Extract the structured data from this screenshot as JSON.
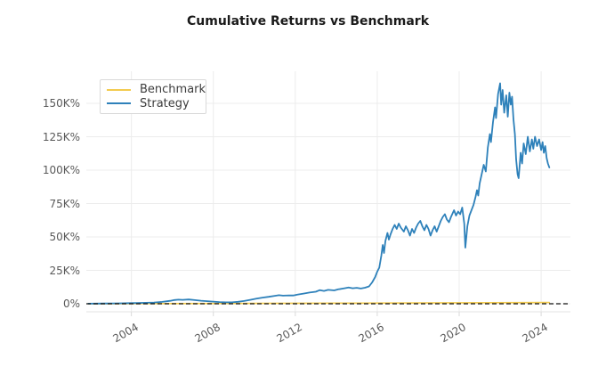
{
  "figure": {
    "background": "#ffffff"
  },
  "title": "Cumulative Returns vs Benchmark",
  "legend": {
    "items": [
      {
        "label": "Benchmark",
        "color": "#f3cb4f"
      },
      {
        "label": "Strategy",
        "color": "#2e81ba"
      }
    ]
  },
  "colors": {
    "grid": "#ececec",
    "axis_spine": "#e3e3e3",
    "tick_mark": "#d9d9d9",
    "tick_label": "#595959",
    "zero_line": "#111111",
    "benchmark": "#f3cb4f",
    "strategy": "#2e81ba"
  },
  "chart_data": {
    "type": "line",
    "title": "Cumulative Returns vs Benchmark",
    "xlabel": "",
    "ylabel": "",
    "grid": true,
    "legend_position": "upper-left",
    "xlim": [
      2001.8,
      2025.43
    ],
    "ylim": [
      -6000,
      174000
    ],
    "x_ticks": [
      2004,
      2008,
      2012,
      2016,
      2020,
      2024
    ],
    "x_tick_labels": [
      "2004",
      "2008",
      "2012",
      "2016",
      "2020",
      "2024"
    ],
    "y_ticks": [
      0,
      25000,
      50000,
      75000,
      100000,
      125000,
      150000
    ],
    "y_tick_labels": [
      "0%",
      "25K%",
      "50K%",
      "75K%",
      "100K%",
      "125K%",
      "150K%"
    ],
    "zero_line": {
      "y": 0,
      "style": "dashed",
      "color": "#111111"
    },
    "series": [
      {
        "name": "Benchmark",
        "color": "#f3cb4f",
        "style": "solid",
        "points": [
          [
            2001.9,
            0
          ],
          [
            2005.0,
            120
          ],
          [
            2010.0,
            300
          ],
          [
            2015.0,
            500
          ],
          [
            2020.0,
            750
          ],
          [
            2024.4,
            950
          ]
        ]
      },
      {
        "name": "Strategy",
        "color": "#2e81ba",
        "style": "solid",
        "points": [
          [
            2001.9,
            100
          ],
          [
            2002.3,
            150
          ],
          [
            2002.7,
            200
          ],
          [
            2003.1,
            300
          ],
          [
            2003.5,
            350
          ],
          [
            2003.9,
            450
          ],
          [
            2004.3,
            550
          ],
          [
            2004.7,
            700
          ],
          [
            2005.1,
            950
          ],
          [
            2005.5,
            1400
          ],
          [
            2005.9,
            2200
          ],
          [
            2006.1,
            2800
          ],
          [
            2006.3,
            3100
          ],
          [
            2006.5,
            2900
          ],
          [
            2006.8,
            3200
          ],
          [
            2007.1,
            2700
          ],
          [
            2007.4,
            2300
          ],
          [
            2007.7,
            1900
          ],
          [
            2008.0,
            1600
          ],
          [
            2008.3,
            1300
          ],
          [
            2008.6,
            1050
          ],
          [
            2008.9,
            1100
          ],
          [
            2009.2,
            1500
          ],
          [
            2009.5,
            2100
          ],
          [
            2009.8,
            2900
          ],
          [
            2010.1,
            3800
          ],
          [
            2010.4,
            4600
          ],
          [
            2010.7,
            5200
          ],
          [
            2011.0,
            5900
          ],
          [
            2011.2,
            6400
          ],
          [
            2011.4,
            6100
          ],
          [
            2011.7,
            6300
          ],
          [
            2011.9,
            6200
          ],
          [
            2012.1,
            6800
          ],
          [
            2012.4,
            7600
          ],
          [
            2012.7,
            8400
          ],
          [
            2013.0,
            9000
          ],
          [
            2013.2,
            10200
          ],
          [
            2013.4,
            9600
          ],
          [
            2013.6,
            10400
          ],
          [
            2013.9,
            10000
          ],
          [
            2014.1,
            10800
          ],
          [
            2014.4,
            11600
          ],
          [
            2014.6,
            12200
          ],
          [
            2014.8,
            11600
          ],
          [
            2015.0,
            11900
          ],
          [
            2015.2,
            11400
          ],
          [
            2015.4,
            12000
          ],
          [
            2015.6,
            13000
          ],
          [
            2015.75,
            16000
          ],
          [
            2015.9,
            20000
          ],
          [
            2016.0,
            24000
          ],
          [
            2016.1,
            27000
          ],
          [
            2016.2,
            36000
          ],
          [
            2016.27,
            44000
          ],
          [
            2016.33,
            38000
          ],
          [
            2016.4,
            47000
          ],
          [
            2016.5,
            53000
          ],
          [
            2016.57,
            48000
          ],
          [
            2016.65,
            52000
          ],
          [
            2016.75,
            56000
          ],
          [
            2016.85,
            59000
          ],
          [
            2016.95,
            56000
          ],
          [
            2017.05,
            60000
          ],
          [
            2017.15,
            57000
          ],
          [
            2017.3,
            54000
          ],
          [
            2017.4,
            58000
          ],
          [
            2017.5,
            55000
          ],
          [
            2017.6,
            51000
          ],
          [
            2017.7,
            56000
          ],
          [
            2017.8,
            53000
          ],
          [
            2017.9,
            57000
          ],
          [
            2018.0,
            60000
          ],
          [
            2018.1,
            62000
          ],
          [
            2018.2,
            58000
          ],
          [
            2018.3,
            55000
          ],
          [
            2018.4,
            59000
          ],
          [
            2018.5,
            56000
          ],
          [
            2018.6,
            51000
          ],
          [
            2018.7,
            55000
          ],
          [
            2018.8,
            58000
          ],
          [
            2018.9,
            54000
          ],
          [
            2019.0,
            58000
          ],
          [
            2019.1,
            62000
          ],
          [
            2019.2,
            65000
          ],
          [
            2019.3,
            67000
          ],
          [
            2019.4,
            63000
          ],
          [
            2019.5,
            61000
          ],
          [
            2019.6,
            65000
          ],
          [
            2019.75,
            70000
          ],
          [
            2019.85,
            66000
          ],
          [
            2019.95,
            69000
          ],
          [
            2020.05,
            67000
          ],
          [
            2020.15,
            72000
          ],
          [
            2020.25,
            60000
          ],
          [
            2020.3,
            42000
          ],
          [
            2020.4,
            58000
          ],
          [
            2020.5,
            66000
          ],
          [
            2020.6,
            70000
          ],
          [
            2020.7,
            74000
          ],
          [
            2020.8,
            80000
          ],
          [
            2020.87,
            85000
          ],
          [
            2020.93,
            81000
          ],
          [
            2021.0,
            90000
          ],
          [
            2021.1,
            97000
          ],
          [
            2021.2,
            104000
          ],
          [
            2021.3,
            99000
          ],
          [
            2021.4,
            117000
          ],
          [
            2021.5,
            127000
          ],
          [
            2021.55,
            121000
          ],
          [
            2021.65,
            136000
          ],
          [
            2021.75,
            147000
          ],
          [
            2021.8,
            139000
          ],
          [
            2021.9,
            157000
          ],
          [
            2022.0,
            165000
          ],
          [
            2022.05,
            149000
          ],
          [
            2022.12,
            160000
          ],
          [
            2022.2,
            143000
          ],
          [
            2022.3,
            156000
          ],
          [
            2022.37,
            140000
          ],
          [
            2022.45,
            158000
          ],
          [
            2022.52,
            149000
          ],
          [
            2022.58,
            155000
          ],
          [
            2022.65,
            138000
          ],
          [
            2022.72,
            127000
          ],
          [
            2022.78,
            108000
          ],
          [
            2022.85,
            97000
          ],
          [
            2022.9,
            94000
          ],
          [
            2023.0,
            113000
          ],
          [
            2023.07,
            105000
          ],
          [
            2023.15,
            120000
          ],
          [
            2023.25,
            112000
          ],
          [
            2023.35,
            125000
          ],
          [
            2023.45,
            114000
          ],
          [
            2023.55,
            123000
          ],
          [
            2023.62,
            116000
          ],
          [
            2023.7,
            125000
          ],
          [
            2023.8,
            118000
          ],
          [
            2023.9,
            123000
          ],
          [
            2024.0,
            115000
          ],
          [
            2024.07,
            121000
          ],
          [
            2024.13,
            113000
          ],
          [
            2024.2,
            118000
          ],
          [
            2024.27,
            109000
          ],
          [
            2024.33,
            105000
          ],
          [
            2024.4,
            102000
          ]
        ]
      }
    ]
  }
}
